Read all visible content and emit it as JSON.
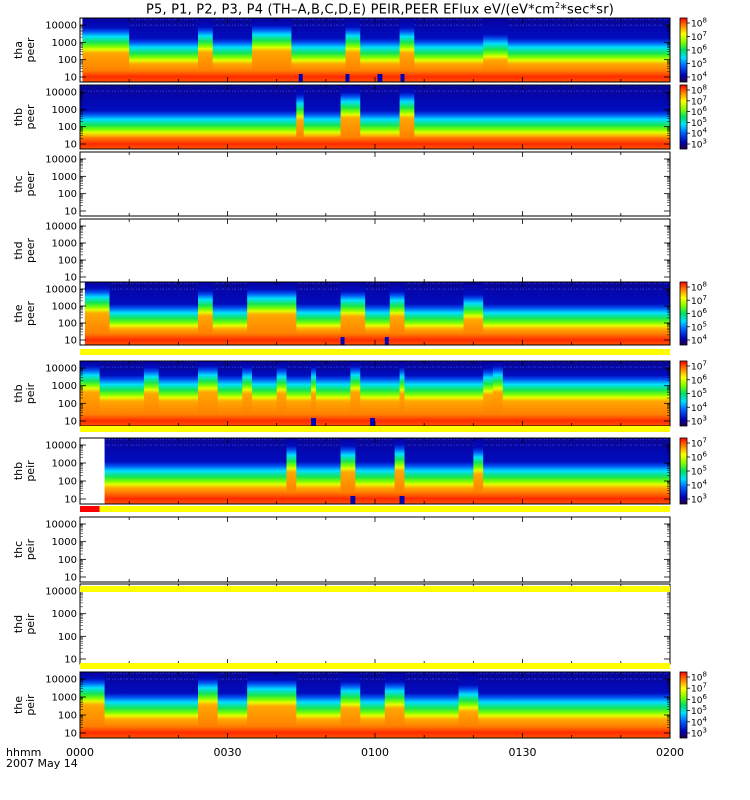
{
  "title_parts": [
    "P5, P1, P2, P3, P4 (TH–A,B,C,D,E) PEIR,PEER EFlux eV/(eV*cm",
    "2",
    "*sec*sr)"
  ],
  "time_axis": {
    "label_line1": "hhmm",
    "label_line2": "2007 May 14",
    "ticks": [
      "0000",
      "0030",
      "0100",
      "0130",
      "0200"
    ],
    "range_minutes": [
      0,
      120
    ]
  },
  "energy_ticks": [
    "10",
    "100",
    "1000",
    "10000"
  ],
  "colors": {
    "flag_yellow": "#ffff00",
    "flag_red": "#ff0000"
  },
  "chart_data": [
    {
      "type": "heatmap",
      "panel": "tha_peer",
      "ylabel": [
        "tha",
        "peer"
      ],
      "yscale": "log",
      "has_data": true,
      "data_start_minute": 0.5,
      "colorbar_exponents": [
        "4",
        "5",
        "6",
        "7",
        "8"
      ],
      "base_level": 0.38,
      "regions": [
        {
          "start": 0.5,
          "end": 10,
          "level": 0.55
        },
        {
          "start": 24,
          "end": 27,
          "level": 0.56
        },
        {
          "start": 35,
          "end": 43,
          "level": 0.58
        },
        {
          "start": 54,
          "end": 57,
          "level": 0.56
        },
        {
          "start": 65,
          "end": 68,
          "level": 0.55
        },
        {
          "start": 82,
          "end": 87,
          "level": 0.44
        }
      ],
      "notches": [
        {
          "start": 44.5,
          "end": 45.3
        },
        {
          "start": 54,
          "end": 54.8
        },
        {
          "start": 60.5,
          "end": 61.5
        },
        {
          "start": 65.2,
          "end": 66
        }
      ]
    },
    {
      "type": "heatmap",
      "panel": "thb_peer",
      "ylabel": [
        "thb",
        "peer"
      ],
      "yscale": "log",
      "has_data": true,
      "data_start_minute": 0,
      "colorbar_exponents": [
        "3",
        "4",
        "5",
        "6",
        "7",
        "8"
      ],
      "base_level": 0.3,
      "regions": [
        {
          "start": 44,
          "end": 45.5,
          "level": 0.55
        },
        {
          "start": 53,
          "end": 57,
          "level": 0.58
        },
        {
          "start": 65,
          "end": 68,
          "level": 0.58
        }
      ],
      "notches": []
    },
    {
      "type": "heatmap",
      "panel": "thc_peer",
      "ylabel": [
        "thc",
        "peer"
      ],
      "yscale": "log",
      "has_data": false
    },
    {
      "type": "heatmap",
      "panel": "thd_peer",
      "ylabel": [
        "thd",
        "peer"
      ],
      "yscale": "log",
      "has_data": false
    },
    {
      "type": "heatmap",
      "panel": "the_peer",
      "ylabel": [
        "the",
        "peer"
      ],
      "yscale": "log",
      "has_data": true,
      "data_start_minute": 1,
      "colorbar_exponents": [
        "4",
        "5",
        "6",
        "7",
        "8"
      ],
      "base_level": 0.35,
      "regions": [
        {
          "start": 1,
          "end": 6,
          "level": 0.6
        },
        {
          "start": 24,
          "end": 27,
          "level": 0.56
        },
        {
          "start": 34,
          "end": 44,
          "level": 0.58
        },
        {
          "start": 53,
          "end": 58,
          "level": 0.55
        },
        {
          "start": 63,
          "end": 66,
          "level": 0.55
        },
        {
          "start": 78,
          "end": 82,
          "level": 0.5
        }
      ],
      "notches": [
        {
          "start": 53,
          "end": 53.8
        },
        {
          "start": 62,
          "end": 62.8
        }
      ]
    },
    {
      "type": "heatmap",
      "panel": "thb_peir_top",
      "ylabel": [
        "thb",
        "peir"
      ],
      "yscale": "log",
      "has_data": true,
      "data_start_minute": 0,
      "colorbar_exponents": [
        "3",
        "4",
        "5",
        "6",
        "7"
      ],
      "base_level": 0.48,
      "regions": [
        {
          "start": 0,
          "end": 4,
          "level": 0.62
        },
        {
          "start": 13,
          "end": 16,
          "level": 0.6
        },
        {
          "start": 24,
          "end": 28,
          "level": 0.62
        },
        {
          "start": 33,
          "end": 35,
          "level": 0.6
        },
        {
          "start": 40,
          "end": 42,
          "level": 0.6
        },
        {
          "start": 47,
          "end": 48,
          "level": 0.6
        },
        {
          "start": 55,
          "end": 57,
          "level": 0.62
        },
        {
          "start": 65,
          "end": 66,
          "level": 0.6
        },
        {
          "start": 82,
          "end": 84,
          "level": 0.58
        },
        {
          "start": 84,
          "end": 86,
          "level": 0.62
        }
      ],
      "notches": [
        {
          "start": 47,
          "end": 48
        },
        {
          "start": 59,
          "end": 60
        }
      ]
    },
    {
      "type": "heatmap",
      "panel": "thb_peir",
      "ylabel": [
        "thb",
        "peir"
      ],
      "yscale": "log",
      "has_data": true,
      "data_start_minute": 5,
      "colorbar_exponents": [
        "3",
        "4",
        "5",
        "6",
        "7"
      ],
      "base_level": 0.34,
      "regions": [
        {
          "start": 42,
          "end": 44,
          "level": 0.58
        },
        {
          "start": 53,
          "end": 56,
          "level": 0.58
        },
        {
          "start": 64,
          "end": 66,
          "level": 0.6
        },
        {
          "start": 80,
          "end": 82,
          "level": 0.55
        }
      ],
      "notches": [
        {
          "start": 55,
          "end": 56
        },
        {
          "start": 65,
          "end": 66
        }
      ]
    },
    {
      "type": "heatmap",
      "panel": "thc_peir",
      "ylabel": [
        "thc",
        "peir"
      ],
      "yscale": "log",
      "has_data": false
    },
    {
      "type": "heatmap",
      "panel": "thd_peir",
      "ylabel": [
        "thd",
        "peir"
      ],
      "yscale": "log",
      "has_data": false
    },
    {
      "type": "heatmap",
      "panel": "the_peir",
      "ylabel": [
        "the",
        "peir"
      ],
      "yscale": "log",
      "has_data": true,
      "data_start_minute": 0,
      "colorbar_exponents": [
        "3",
        "4",
        "5",
        "6",
        "7",
        "8"
      ],
      "base_level": 0.38,
      "regions": [
        {
          "start": 0,
          "end": 5,
          "level": 0.6
        },
        {
          "start": 24,
          "end": 28,
          "level": 0.6
        },
        {
          "start": 34,
          "end": 44,
          "level": 0.58
        },
        {
          "start": 53,
          "end": 57,
          "level": 0.55
        },
        {
          "start": 62,
          "end": 66,
          "level": 0.55
        },
        {
          "start": 77,
          "end": 81,
          "level": 0.5
        }
      ],
      "notches": []
    }
  ],
  "flag_bars": [
    {
      "after_panel": 4,
      "segments": [
        {
          "start": 0,
          "end": 120,
          "color": "yellow"
        }
      ]
    },
    {
      "after_panel": 5,
      "segments": [
        {
          "start": 0,
          "end": 120,
          "color": "yellow"
        }
      ]
    },
    {
      "after_panel": 6,
      "segments": [
        {
          "start": 0,
          "end": 4,
          "color": "red"
        },
        {
          "start": 4,
          "end": 120,
          "color": "yellow"
        }
      ]
    },
    {
      "after_panel": 7,
      "segments": [
        {
          "start": 0,
          "end": 120,
          "color": "yellow"
        }
      ]
    },
    {
      "after_panel": 8,
      "segments": [
        {
          "start": 0,
          "end": 120,
          "color": "yellow"
        }
      ]
    }
  ]
}
